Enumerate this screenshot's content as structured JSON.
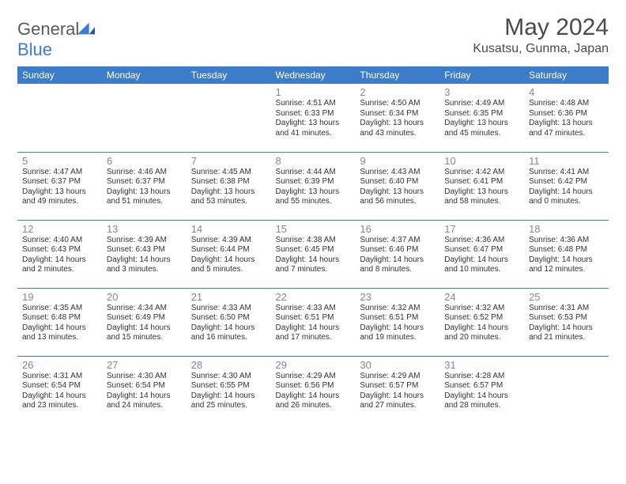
{
  "brand": {
    "part1": "General",
    "part2": "Blue"
  },
  "title": "May 2024",
  "location": "Kusatsu, Gunma, Japan",
  "colors": {
    "header_bg": "#3d7cc9",
    "header_text": "#ffffff",
    "border": "#3d7cc9",
    "daynum": "#888888",
    "body_text": "#333333",
    "title_text": "#4a4a4a"
  },
  "weekdays": [
    "Sunday",
    "Monday",
    "Tuesday",
    "Wednesday",
    "Thursday",
    "Friday",
    "Saturday"
  ],
  "weeks": [
    [
      null,
      null,
      null,
      {
        "n": "1",
        "sr": "4:51 AM",
        "ss": "6:33 PM",
        "dl": "13 hours and 41 minutes."
      },
      {
        "n": "2",
        "sr": "4:50 AM",
        "ss": "6:34 PM",
        "dl": "13 hours and 43 minutes."
      },
      {
        "n": "3",
        "sr": "4:49 AM",
        "ss": "6:35 PM",
        "dl": "13 hours and 45 minutes."
      },
      {
        "n": "4",
        "sr": "4:48 AM",
        "ss": "6:36 PM",
        "dl": "13 hours and 47 minutes."
      }
    ],
    [
      {
        "n": "5",
        "sr": "4:47 AM",
        "ss": "6:37 PM",
        "dl": "13 hours and 49 minutes."
      },
      {
        "n": "6",
        "sr": "4:46 AM",
        "ss": "6:37 PM",
        "dl": "13 hours and 51 minutes."
      },
      {
        "n": "7",
        "sr": "4:45 AM",
        "ss": "6:38 PM",
        "dl": "13 hours and 53 minutes."
      },
      {
        "n": "8",
        "sr": "4:44 AM",
        "ss": "6:39 PM",
        "dl": "13 hours and 55 minutes."
      },
      {
        "n": "9",
        "sr": "4:43 AM",
        "ss": "6:40 PM",
        "dl": "13 hours and 56 minutes."
      },
      {
        "n": "10",
        "sr": "4:42 AM",
        "ss": "6:41 PM",
        "dl": "13 hours and 58 minutes."
      },
      {
        "n": "11",
        "sr": "4:41 AM",
        "ss": "6:42 PM",
        "dl": "14 hours and 0 minutes."
      }
    ],
    [
      {
        "n": "12",
        "sr": "4:40 AM",
        "ss": "6:43 PM",
        "dl": "14 hours and 2 minutes."
      },
      {
        "n": "13",
        "sr": "4:39 AM",
        "ss": "6:43 PM",
        "dl": "14 hours and 3 minutes."
      },
      {
        "n": "14",
        "sr": "4:39 AM",
        "ss": "6:44 PM",
        "dl": "14 hours and 5 minutes."
      },
      {
        "n": "15",
        "sr": "4:38 AM",
        "ss": "6:45 PM",
        "dl": "14 hours and 7 minutes."
      },
      {
        "n": "16",
        "sr": "4:37 AM",
        "ss": "6:46 PM",
        "dl": "14 hours and 8 minutes."
      },
      {
        "n": "17",
        "sr": "4:36 AM",
        "ss": "6:47 PM",
        "dl": "14 hours and 10 minutes."
      },
      {
        "n": "18",
        "sr": "4:36 AM",
        "ss": "6:48 PM",
        "dl": "14 hours and 12 minutes."
      }
    ],
    [
      {
        "n": "19",
        "sr": "4:35 AM",
        "ss": "6:48 PM",
        "dl": "14 hours and 13 minutes."
      },
      {
        "n": "20",
        "sr": "4:34 AM",
        "ss": "6:49 PM",
        "dl": "14 hours and 15 minutes."
      },
      {
        "n": "21",
        "sr": "4:33 AM",
        "ss": "6:50 PM",
        "dl": "14 hours and 16 minutes."
      },
      {
        "n": "22",
        "sr": "4:33 AM",
        "ss": "6:51 PM",
        "dl": "14 hours and 17 minutes."
      },
      {
        "n": "23",
        "sr": "4:32 AM",
        "ss": "6:51 PM",
        "dl": "14 hours and 19 minutes."
      },
      {
        "n": "24",
        "sr": "4:32 AM",
        "ss": "6:52 PM",
        "dl": "14 hours and 20 minutes."
      },
      {
        "n": "25",
        "sr": "4:31 AM",
        "ss": "6:53 PM",
        "dl": "14 hours and 21 minutes."
      }
    ],
    [
      {
        "n": "26",
        "sr": "4:31 AM",
        "ss": "6:54 PM",
        "dl": "14 hours and 23 minutes."
      },
      {
        "n": "27",
        "sr": "4:30 AM",
        "ss": "6:54 PM",
        "dl": "14 hours and 24 minutes."
      },
      {
        "n": "28",
        "sr": "4:30 AM",
        "ss": "6:55 PM",
        "dl": "14 hours and 25 minutes."
      },
      {
        "n": "29",
        "sr": "4:29 AM",
        "ss": "6:56 PM",
        "dl": "14 hours and 26 minutes."
      },
      {
        "n": "30",
        "sr": "4:29 AM",
        "ss": "6:57 PM",
        "dl": "14 hours and 27 minutes."
      },
      {
        "n": "31",
        "sr": "4:28 AM",
        "ss": "6:57 PM",
        "dl": "14 hours and 28 minutes."
      },
      null
    ]
  ],
  "labels": {
    "sunrise": "Sunrise:",
    "sunset": "Sunset:",
    "daylight": "Daylight:"
  }
}
